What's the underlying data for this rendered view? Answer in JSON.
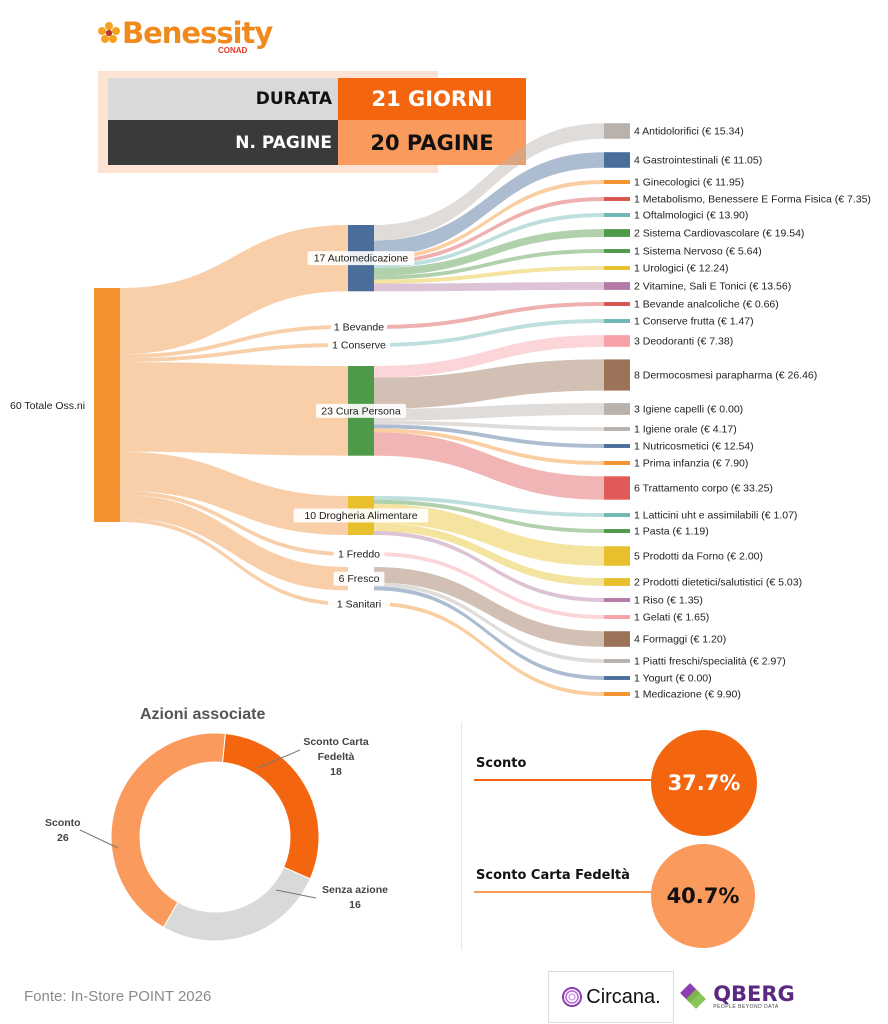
{
  "header": {
    "logo_text": "Benessity",
    "logo_sub": "CONAD",
    "durata_label": "DURATA",
    "durata_value": "21 GIORNI",
    "pagine_label": "N. PAGINE",
    "pagine_value": "20 PAGINE"
  },
  "chart_data": [
    {
      "type": "sankey",
      "source": {
        "label": "60 Totale Oss.ni",
        "value": 60,
        "color": "#f4922f"
      },
      "categories": [
        {
          "id": "auto",
          "label": "17 Automedicazione",
          "value": 17,
          "color": "#4a6d99"
        },
        {
          "id": "bev",
          "label": "1 Bevande",
          "value": 1,
          "color": "#f4922f"
        },
        {
          "id": "cons",
          "label": "1 Conserve",
          "value": 1,
          "color": "#f4922f"
        },
        {
          "id": "cura",
          "label": "23 Cura Persona",
          "value": 23,
          "color": "#4f9a48"
        },
        {
          "id": "drog",
          "label": "10 Drogheria Alimentare",
          "value": 10,
          "color": "#e8c02c"
        },
        {
          "id": "fred",
          "label": "1 Freddo",
          "value": 1,
          "color": "#f4922f"
        },
        {
          "id": "fres",
          "label": "6 Fresco",
          "value": 6,
          "color": "#f4922f"
        },
        {
          "id": "sani",
          "label": "1 Sanitari",
          "value": 1,
          "color": "#f4922f"
        }
      ],
      "leaves": [
        {
          "parent": "auto",
          "label": "4 Antidolorifici (€ 15.34)",
          "value": 4,
          "color": "#b8b1ac"
        },
        {
          "parent": "auto",
          "label": "4 Gastrointestinali (€ 11.05)",
          "value": 4,
          "color": "#4a6d99"
        },
        {
          "parent": "auto",
          "label": "1 Ginecologici (€ 11.95)",
          "value": 1,
          "color": "#f4922f"
        },
        {
          "parent": "auto",
          "label": "1 Metabolismo, Benessere E Forma Fisica (€ 7.35)",
          "value": 1,
          "color": "#d9534f"
        },
        {
          "parent": "auto",
          "label": "1 Oftalmologici (€ 13.90)",
          "value": 1,
          "color": "#6fb7b4"
        },
        {
          "parent": "auto",
          "label": "2 Sistema Cardiovascolare (€ 19.54)",
          "value": 2,
          "color": "#4f9a48"
        },
        {
          "parent": "auto",
          "label": "1 Sistema Nervoso (€ 5.64)",
          "value": 1,
          "color": "#4f9a48"
        },
        {
          "parent": "auto",
          "label": "1 Urologici (€ 12.24)",
          "value": 1,
          "color": "#e8c02c"
        },
        {
          "parent": "auto",
          "label": "2 Vitamine, Sali E Tonici (€ 13.56)",
          "value": 2,
          "color": "#b27aa4"
        },
        {
          "parent": "bev",
          "label": "1 Bevande analcoliche (€ 0.66)",
          "value": 1,
          "color": "#d9534f"
        },
        {
          "parent": "cons",
          "label": "1 Conserve frutta (€ 1.47)",
          "value": 1,
          "color": "#6fb7b4"
        },
        {
          "parent": "cura",
          "label": "3 Deodoranti (€ 7.38)",
          "value": 3,
          "color": "#f7a1a8"
        },
        {
          "parent": "cura",
          "label": "8 Dermocosmesi parapharma (€ 26.46)",
          "value": 8,
          "color": "#9c7359"
        },
        {
          "parent": "cura",
          "label": "3 Igiene capelli (€ 0.00)",
          "value": 3,
          "color": "#b8b1ac"
        },
        {
          "parent": "cura",
          "label": "1 Igiene orale (€ 4.17)",
          "value": 1,
          "color": "#b8b1ac"
        },
        {
          "parent": "cura",
          "label": "1 Nutricosmetici (€ 12.54)",
          "value": 1,
          "color": "#4a6d99"
        },
        {
          "parent": "cura",
          "label": "1 Prima infanzia (€ 7.90)",
          "value": 1,
          "color": "#f4922f"
        },
        {
          "parent": "cura",
          "label": "6 Trattamento corpo (€ 33.25)",
          "value": 6,
          "color": "#e05a5a"
        },
        {
          "parent": "drog",
          "label": "1 Latticini uht e assimilabili (€ 1.07)",
          "value": 1,
          "color": "#6fb7b4"
        },
        {
          "parent": "drog",
          "label": "1 Pasta (€ 1.19)",
          "value": 1,
          "color": "#4f9a48"
        },
        {
          "parent": "drog",
          "label": "5 Prodotti da Forno (€ 2.00)",
          "value": 5,
          "color": "#e8c02c"
        },
        {
          "parent": "drog",
          "label": "2 Prodotti dietetici/salutistici (€ 5.03)",
          "value": 2,
          "color": "#e8c02c"
        },
        {
          "parent": "drog",
          "label": "1 Riso (€ 1.35)",
          "value": 1,
          "color": "#b27aa4"
        },
        {
          "parent": "fred",
          "label": "1 Gelati (€ 1.65)",
          "value": 1,
          "color": "#f7a1a8"
        },
        {
          "parent": "fres",
          "label": "4 Formaggi (€ 1.20)",
          "value": 4,
          "color": "#9c7359"
        },
        {
          "parent": "fres",
          "label": "1 Piatti freschi/specialità (€ 2.97)",
          "value": 1,
          "color": "#b8b1ac"
        },
        {
          "parent": "fres",
          "label": "1 Yogurt (€ 0.00)",
          "value": 1,
          "color": "#4a6d99"
        },
        {
          "parent": "sani",
          "label": "1 Medicazione (€ 9.90)",
          "value": 1,
          "color": "#f4922f"
        }
      ]
    },
    {
      "type": "pie",
      "title": "Azioni associate",
      "slices": [
        {
          "name": "Sconto Carta Fedeltà",
          "value": 18,
          "color": "#f4650f"
        },
        {
          "name": "Senza azione",
          "value": 16,
          "color": "#d9d9d9"
        },
        {
          "name": "Sconto",
          "value": 26,
          "color": "#fa9a5c"
        }
      ],
      "labels": {
        "fedelta_1": "Sconto Carta",
        "fedelta_2": "Fedeltà",
        "fedelta_v": "18",
        "senza_1": "Senza azione",
        "senza_v": "16",
        "sconto_1": "Sconto",
        "sconto_v": "26"
      }
    }
  ],
  "kpi": {
    "sconto_label": "Sconto",
    "sconto_value": "37.7%",
    "sconto_color": "#f4650f",
    "fedelta_label": "Sconto Carta Fedeltà",
    "fedelta_value": "40.7%",
    "fedelta_color": "#fa9a5c"
  },
  "footer": {
    "source": "Fonte: In-Store POINT 2026",
    "brand1": "Circana.",
    "brand2": "QBERG",
    "brand2_sub": "PEOPLE BEYOND DATA"
  }
}
